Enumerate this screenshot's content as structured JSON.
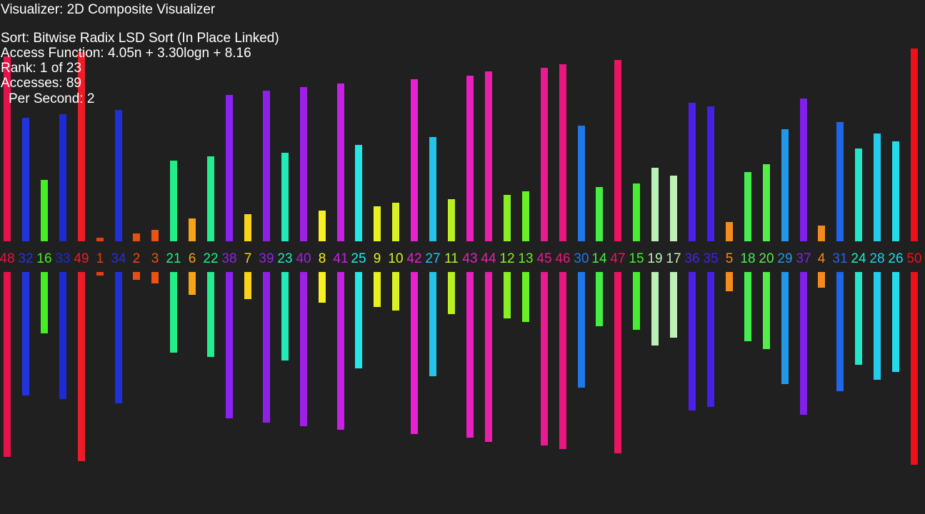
{
  "hud": {
    "visualizer": "Visualizer: 2D Composite Visualizer",
    "sort": "Sort: Bitwise Radix LSD Sort (In Place Linked)",
    "access_function": "Access Function: 4.05n + 3.30logn + 8.16",
    "rank": "Rank: 1 of 23",
    "accesses": "Accesses: 89",
    "per_second": "Per Second: 2"
  },
  "array": {
    "max_value": 50,
    "values": [
      48,
      32,
      16,
      33,
      49,
      1,
      34,
      2,
      3,
      21,
      6,
      22,
      38,
      7,
      39,
      23,
      40,
      8,
      41,
      25,
      9,
      10,
      42,
      27,
      11,
      43,
      44,
      12,
      13,
      45,
      46,
      30,
      14,
      47,
      15,
      19,
      17,
      36,
      35,
      5,
      18,
      20,
      29,
      37,
      4,
      31,
      24,
      28,
      26,
      50
    ],
    "colors": [
      "#e8124a",
      "#2233dd",
      "#44ee22",
      "#1e2ad8",
      "#ee1c28",
      "#e8400c",
      "#2030d8",
      "#e85010",
      "#ea5410",
      "#22ee88",
      "#f4a414",
      "#22ee8c",
      "#8c22f0",
      "#f8d418",
      "#9020e8",
      "#22eab8",
      "#a020e8",
      "#f8f020",
      "#c820e8",
      "#22e8e8",
      "#e8f020",
      "#d8f022",
      "#e820d0",
      "#22c4e8",
      "#b8f022",
      "#e820c0",
      "#e820a8",
      "#88f022",
      "#68f022",
      "#ea1a90",
      "#ea1680",
      "#2078e8",
      "#44ee44",
      "#ea1462",
      "#44ee30",
      "#b8f0b8",
      "#c0f0b8",
      "#4c20ea",
      "#4420ea",
      "#f48c1e",
      "#44ee50",
      "#54ee48",
      "#2098e8",
      "#8020ea",
      "#f48a1e",
      "#2066e8",
      "#22e8c8",
      "#22ccea",
      "#22dce8",
      "#ee1018"
    ]
  }
}
